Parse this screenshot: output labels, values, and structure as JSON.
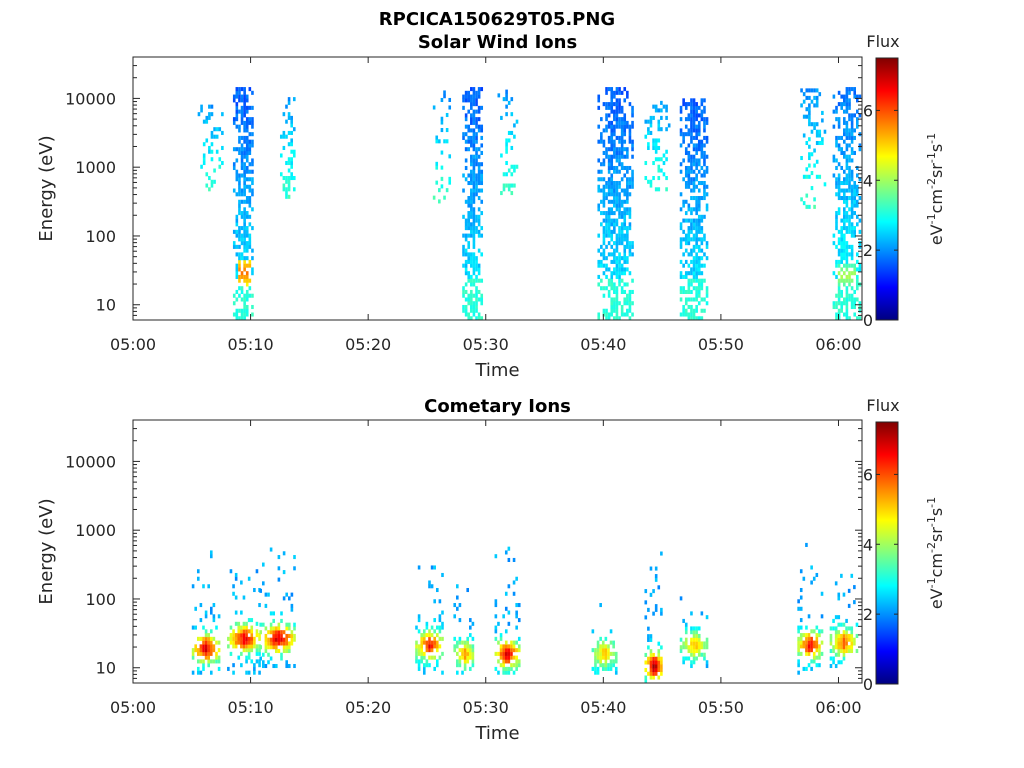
{
  "figure_title": "RPCICA150629T05.PNG",
  "colorbar": {
    "title": "Flux",
    "ticks": [
      "0",
      "2",
      "4",
      "6"
    ],
    "range": [
      0,
      7.5
    ]
  },
  "chart_data": [
    {
      "type": "heatmap",
      "title": "Solar Wind Ions",
      "xlabel": "Time",
      "ylabel": "Energy (eV)",
      "yscale": "log",
      "ylim": [
        6,
        40000
      ],
      "xlim": [
        "05:00",
        "06:02"
      ],
      "x_ticks": [
        "05:00",
        "05:10",
        "05:20",
        "05:30",
        "05:40",
        "05:50",
        "06:00"
      ],
      "y_ticks": [
        "10",
        "100",
        "1000",
        "10000"
      ],
      "grid": false,
      "bursts": [
        {
          "start": "05:05:30",
          "end": "05:07:30",
          "e_low": 450,
          "e_high": 9000,
          "core_flux": 2.0,
          "density": 0.35
        },
        {
          "start": "05:08:30",
          "end": "05:10:15",
          "e_low": 6,
          "e_high": 14000,
          "core_flux": 1.6,
          "density": 0.8,
          "peak_flux": 5.8,
          "peak_energy": 28
        },
        {
          "start": "05:12:30",
          "end": "05:13:45",
          "e_low": 350,
          "e_high": 11000,
          "core_flux": 2.0,
          "density": 0.35
        },
        {
          "start": "05:25:30",
          "end": "05:27:00",
          "e_low": 300,
          "e_high": 13000,
          "core_flux": 2.0,
          "density": 0.3
        },
        {
          "start": "05:28:00",
          "end": "05:29:45",
          "e_low": 6,
          "e_high": 13000,
          "core_flux": 1.6,
          "density": 0.8
        },
        {
          "start": "05:31:00",
          "end": "05:32:45",
          "e_low": 350,
          "e_high": 13000,
          "core_flux": 2.0,
          "density": 0.35
        },
        {
          "start": "05:39:30",
          "end": "05:42:30",
          "e_low": 6,
          "e_high": 13000,
          "core_flux": 1.6,
          "density": 0.8
        },
        {
          "start": "05:43:30",
          "end": "05:45:30",
          "e_low": 450,
          "e_high": 9000,
          "core_flux": 2.0,
          "density": 0.35
        },
        {
          "start": "05:46:30",
          "end": "05:48:45",
          "e_low": 6,
          "e_high": 9000,
          "core_flux": 1.6,
          "density": 0.8
        },
        {
          "start": "05:56:45",
          "end": "05:58:45",
          "e_low": 250,
          "e_high": 13000,
          "core_flux": 2.0,
          "density": 0.35
        },
        {
          "start": "05:59:30",
          "end": "06:01:45",
          "e_low": 6,
          "e_high": 13000,
          "core_flux": 1.8,
          "density": 0.7,
          "peak_flux": 4.2,
          "peak_energy": 25
        }
      ]
    },
    {
      "type": "heatmap",
      "title": "Cometary Ions",
      "xlabel": "Time",
      "ylabel": "Energy (eV)",
      "yscale": "log",
      "ylim": [
        6,
        40000
      ],
      "xlim": [
        "05:00",
        "06:02"
      ],
      "x_ticks": [
        "05:00",
        "05:10",
        "05:20",
        "05:30",
        "05:40",
        "05:50",
        "06:00"
      ],
      "y_ticks": [
        "10",
        "100",
        "1000",
        "10000"
      ],
      "grid": false,
      "bursts": [
        {
          "start": "05:05:00",
          "end": "05:07:15",
          "e_low": 8,
          "e_high": 550,
          "peak_flux": 7.0,
          "peak_energy": 18
        },
        {
          "start": "05:08:00",
          "end": "05:10:45",
          "e_low": 8,
          "e_high": 450,
          "peak_flux": 6.8,
          "peak_energy": 25
        },
        {
          "start": "05:10:45",
          "end": "05:13:45",
          "e_low": 10,
          "e_high": 600,
          "peak_flux": 7.0,
          "peak_energy": 25
        },
        {
          "start": "05:24:00",
          "end": "05:26:15",
          "e_low": 8,
          "e_high": 600,
          "peak_flux": 6.6,
          "peak_energy": 20
        },
        {
          "start": "05:27:15",
          "end": "05:29:00",
          "e_low": 8,
          "e_high": 200,
          "peak_flux": 5.5,
          "peak_energy": 15
        },
        {
          "start": "05:30:45",
          "end": "05:32:45",
          "e_low": 8,
          "e_high": 950,
          "peak_flux": 7.0,
          "peak_energy": 15
        },
        {
          "start": "05:39:00",
          "end": "05:41:00",
          "e_low": 8,
          "e_high": 160,
          "peak_flux": 5.2,
          "peak_energy": 15
        },
        {
          "start": "05:43:30",
          "end": "05:45:00",
          "e_low": 6,
          "e_high": 550,
          "peak_flux": 7.5,
          "peak_energy": 10
        },
        {
          "start": "05:46:30",
          "end": "05:48:45",
          "e_low": 10,
          "e_high": 160,
          "peak_flux": 5.2,
          "peak_energy": 20
        },
        {
          "start": "05:56:30",
          "end": "05:58:30",
          "e_low": 8,
          "e_high": 600,
          "peak_flux": 6.8,
          "peak_energy": 20
        },
        {
          "start": "05:59:15",
          "end": "06:01:30",
          "e_low": 10,
          "e_high": 350,
          "peak_flux": 6.0,
          "peak_energy": 22
        }
      ]
    }
  ]
}
